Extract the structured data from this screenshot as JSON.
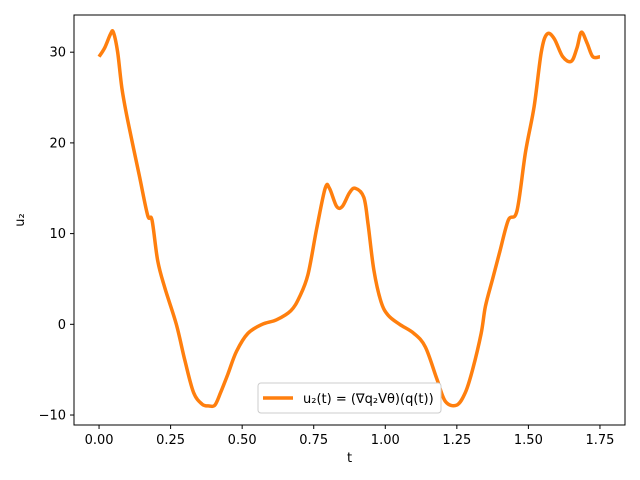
{
  "chart_data": {
    "type": "line",
    "title": "",
    "xlabel": "t",
    "ylabel": "u₂",
    "xlim": [
      -0.0875,
      1.8375
    ],
    "ylim": [
      -11.1,
      34.1
    ],
    "x_ticks": [
      0.0,
      0.25,
      0.5,
      0.75,
      1.0,
      1.25,
      1.5,
      1.75
    ],
    "x_tick_labels": [
      "0.00",
      "0.25",
      "0.50",
      "0.75",
      "1.00",
      "1.25",
      "1.50",
      "1.75"
    ],
    "y_ticks": [
      -10,
      0,
      10,
      20,
      30
    ],
    "y_tick_labels": [
      "−10",
      "0",
      "10",
      "20",
      "30"
    ],
    "grid": false,
    "legend_position": "lower-center",
    "series": [
      {
        "name": "u₂(t) = (∇q₂Vθ)(q(t))",
        "color": "#ff7f0e",
        "x": [
          0.0,
          0.02,
          0.04,
          0.05,
          0.065,
          0.08,
          0.1,
          0.14,
          0.17,
          0.185,
          0.205,
          0.23,
          0.27,
          0.3,
          0.33,
          0.36,
          0.385,
          0.405,
          0.425,
          0.45,
          0.48,
          0.52,
          0.57,
          0.62,
          0.67,
          0.7,
          0.73,
          0.76,
          0.79,
          0.805,
          0.83,
          0.85,
          0.875,
          0.895,
          0.925,
          0.94,
          0.96,
          0.985,
          1.01,
          1.05,
          1.1,
          1.14,
          1.18,
          1.21,
          1.25,
          1.28,
          1.305,
          1.335,
          1.35,
          1.375,
          1.4,
          1.43,
          1.46,
          1.49,
          1.52,
          1.545,
          1.565,
          1.59,
          1.62,
          1.65,
          1.67,
          1.685,
          1.705,
          1.725,
          1.75
        ],
        "values": [
          29.5,
          30.5,
          32.0,
          32.2,
          30.0,
          26.0,
          22.5,
          16.5,
          12.0,
          11.5,
          7.0,
          4.0,
          0.0,
          -4.0,
          -7.5,
          -8.8,
          -9.0,
          -8.9,
          -7.5,
          -5.5,
          -3.0,
          -1.0,
          0.0,
          0.5,
          1.5,
          3.0,
          5.5,
          10.5,
          15.0,
          15.0,
          13.0,
          13.0,
          14.5,
          15.0,
          14.0,
          11.0,
          6.0,
          2.5,
          1.0,
          0.0,
          -1.0,
          -2.5,
          -6.0,
          -8.5,
          -8.9,
          -7.5,
          -5.0,
          -1.0,
          2.0,
          5.0,
          8.0,
          11.5,
          12.5,
          19.0,
          24.0,
          30.0,
          32.0,
          31.5,
          29.5,
          29.0,
          30.5,
          32.2,
          31.0,
          29.5,
          29.5
        ]
      }
    ]
  }
}
